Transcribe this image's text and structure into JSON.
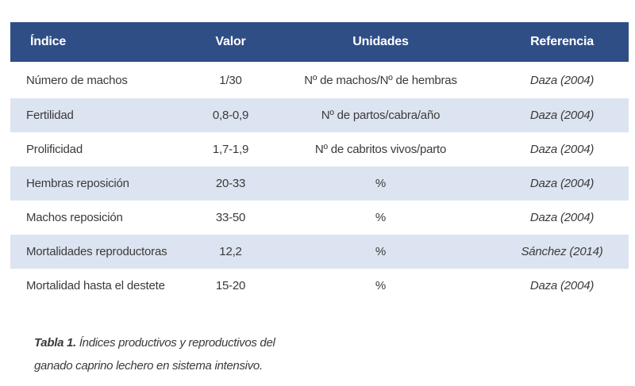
{
  "table": {
    "headers": [
      "Índice",
      "Valor",
      "Unidades",
      "Referencia"
    ],
    "rows": [
      [
        "Número de machos",
        "1/30",
        "Nº de machos/Nº de hembras",
        "Daza (2004)"
      ],
      [
        "Fertilidad",
        "0,8-0,9",
        "Nº de partos/cabra/año",
        "Daza (2004)"
      ],
      [
        "Prolificidad",
        "1,7-1,9",
        "Nº de cabritos vivos/parto",
        "Daza (2004)"
      ],
      [
        "Hembras reposición",
        "20-33",
        "%",
        "Daza (2004)"
      ],
      [
        "Machos reposición",
        "33-50",
        "%",
        "Daza (2004)"
      ],
      [
        "Mortalidades reproductoras",
        "12,2",
        "%",
        "Sánchez (2014)"
      ],
      [
        "Mortalidad hasta el destete",
        "15-20",
        "%",
        "Daza (2004)"
      ]
    ],
    "header_color": "#2f4e86",
    "stripe_color": "#dde4f1"
  },
  "caption": {
    "label": "Tabla 1.",
    "line1": "Índices productivos y reproductivos del",
    "line2": "ganado caprino lechero en sistema intensivo."
  }
}
